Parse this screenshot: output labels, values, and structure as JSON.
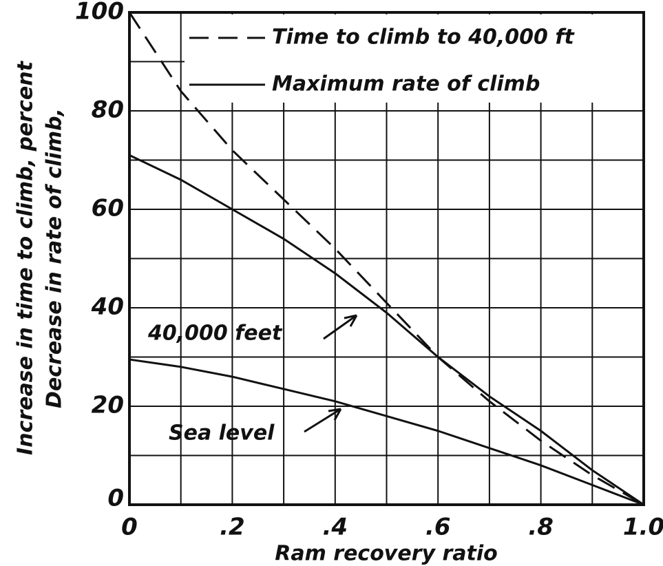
{
  "chart_data": {
    "type": "line",
    "x_label": "Ram recovery ratio",
    "y_label": [
      "Increase in time to climb,   percent",
      "Decrease  in rate of climb,"
    ],
    "legend": [
      {
        "label": "Time to climb to 40,000 ft",
        "dashed": true
      },
      {
        "label": "Maximum rate of climb",
        "dashed": false
      }
    ],
    "x": [
      0,
      0.1,
      0.2,
      0.3,
      0.4,
      0.5,
      0.6,
      0.7,
      0.8,
      0.9,
      1.0
    ],
    "series": [
      {
        "legend": 0,
        "color": "#111111",
        "dashed": true,
        "values": [
          100,
          84,
          72,
          62,
          52,
          41,
          30,
          21,
          13,
          6,
          0
        ]
      },
      {
        "legend": 1,
        "name": "40,000 feet",
        "color": "#111111",
        "dashed": false,
        "values": [
          71,
          66,
          60,
          54,
          47,
          39,
          30,
          22,
          15,
          7,
          0
        ]
      },
      {
        "legend": 1,
        "name": "Sea level",
        "color": "#111111",
        "dashed": false,
        "values": [
          29.5,
          28,
          26,
          23.5,
          21,
          18,
          15,
          11.5,
          8,
          4,
          0
        ]
      }
    ],
    "xlim": [
      0,
      1.0
    ],
    "ylim": [
      0,
      100
    ],
    "xticks": [
      0,
      {
        "value": 0.2,
        "label": ".2"
      },
      {
        "value": 0.4,
        "label": ".4"
      },
      {
        "value": 0.6,
        "label": ".6"
      },
      {
        "value": 0.8,
        "label": ".8"
      },
      {
        "value": 1.0,
        "label": "1.0"
      }
    ],
    "yticks": [
      0,
      20,
      40,
      60,
      80,
      100
    ],
    "x_grid": [
      0,
      0.1,
      0.2,
      0.3,
      0.4,
      0.5,
      0.6,
      0.7,
      0.8,
      0.9,
      1.0
    ],
    "y_grid": [
      0,
      10,
      20,
      30,
      40,
      50,
      60,
      70,
      80,
      90,
      100
    ]
  }
}
